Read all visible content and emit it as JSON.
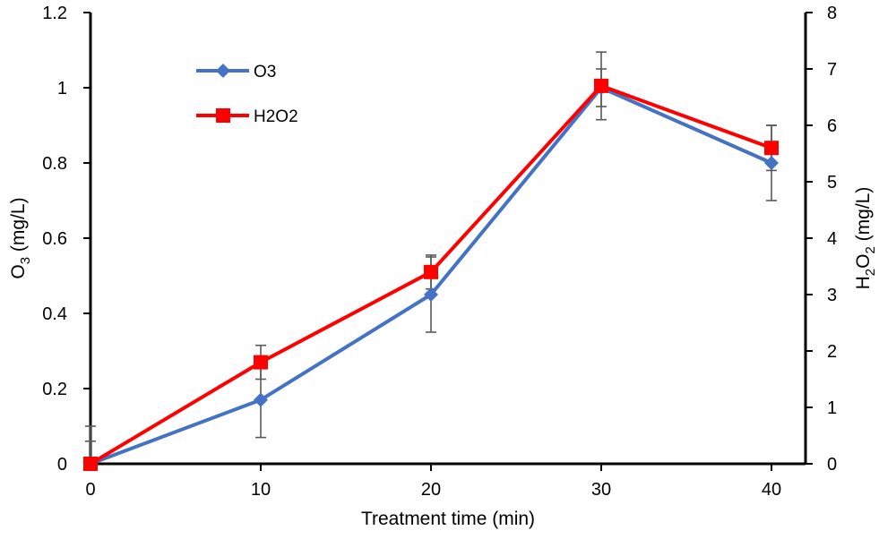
{
  "chart_data": {
    "type": "line",
    "title": "",
    "xlabel": "Treatment time (min)",
    "ylabel_left": {
      "main": "O",
      "sub": "3",
      "rest": " (mg/L)"
    },
    "ylabel_right": {
      "parts": [
        "H",
        "2",
        "O",
        "2",
        " (mg/L)"
      ]
    },
    "x_ticks": [
      0,
      10,
      20,
      30,
      40
    ],
    "xlim": [
      0,
      42
    ],
    "y_left_lim": [
      0,
      1.2
    ],
    "y_left_ticks": [
      {
        "value": 0,
        "label": "0"
      },
      {
        "value": 0.2,
        "label": "0.2"
      },
      {
        "value": 0.4,
        "label": "0.4"
      },
      {
        "value": 0.6,
        "label": "0.6"
      },
      {
        "value": 0.8,
        "label": "0.8"
      },
      {
        "value": 1.0,
        "label": "1"
      },
      {
        "value": 1.2,
        "label": "1.2"
      }
    ],
    "y_right_lim": [
      0,
      8
    ],
    "y_right_ticks": [
      {
        "value": 0,
        "label": "0"
      },
      {
        "value": 1,
        "label": "1"
      },
      {
        "value": 2,
        "label": "2"
      },
      {
        "value": 3,
        "label": "3"
      },
      {
        "value": 4,
        "label": "4"
      },
      {
        "value": 5,
        "label": "5"
      },
      {
        "value": 6,
        "label": "6"
      },
      {
        "value": 7,
        "label": "7"
      },
      {
        "value": 8,
        "label": "8"
      }
    ],
    "grid": false,
    "legend_position": "top-left",
    "series": [
      {
        "name": "O3",
        "axis": "left",
        "color": "#4472C4",
        "marker": "diamond",
        "x": [
          0,
          10,
          20,
          30,
          40
        ],
        "y": [
          0,
          0.17,
          0.45,
          1.0,
          0.8
        ],
        "error": [
          0.1,
          0.1,
          0.1,
          0.05,
          0.1
        ]
      },
      {
        "name": "H2O2",
        "axis": "right",
        "color": "#FF0000",
        "marker": "square",
        "x": [
          0,
          10,
          20,
          30,
          40
        ],
        "y": [
          0,
          1.8,
          3.4,
          6.7,
          5.6
        ],
        "error": [
          0.4,
          0.3,
          0.3,
          0.6,
          0.4
        ]
      }
    ]
  }
}
